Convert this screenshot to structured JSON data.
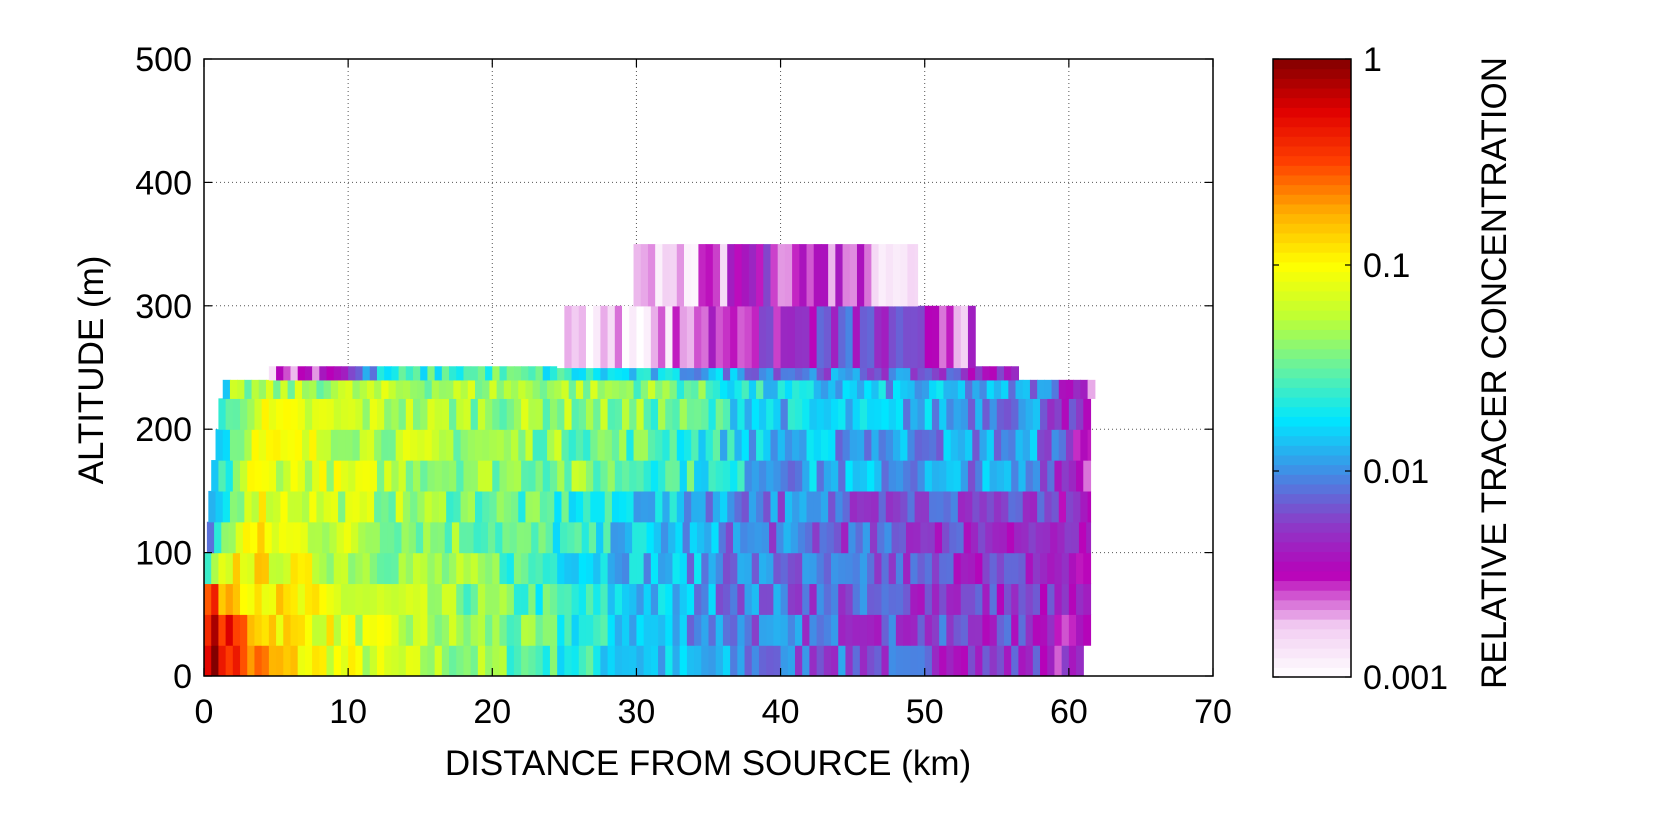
{
  "chart_data": {
    "type": "heatmap",
    "title": "",
    "xlabel": "DISTANCE FROM SOURCE (km)",
    "ylabel": "ALTITUDE (m)",
    "colorbar_label": "RELATIVE TRACER CONCENTRATION",
    "xlim": [
      0,
      70
    ],
    "ylim": [
      0,
      500
    ],
    "xticks": [
      0,
      10,
      20,
      30,
      40,
      50,
      60,
      70
    ],
    "yticks": [
      0,
      100,
      200,
      300,
      400,
      500
    ],
    "color_scale": "log",
    "color_range": [
      0.001,
      1
    ],
    "colorbar_ticks": [
      {
        "value": 0.001,
        "label": "0.001"
      },
      {
        "value": 0.01,
        "label": "0.01"
      },
      {
        "value": 0.1,
        "label": "0.1"
      },
      {
        "value": 1,
        "label": "1"
      }
    ],
    "colormap": [
      "#ffffff",
      "#f2ccf2",
      "#b800b8",
      "#8a3dc8",
      "#3f8fe6",
      "#00e6ff",
      "#66f2a0",
      "#bfff33",
      "#ffff00",
      "#ffb000",
      "#ff4000",
      "#e00000",
      "#820000"
    ],
    "grid": true,
    "layers": [
      {
        "z": [
          0,
          25
        ],
        "x_start": 0,
        "x_end": 61,
        "profile": [
          [
            0,
            1.0
          ],
          [
            3,
            0.25
          ],
          [
            6,
            0.12
          ],
          [
            12,
            0.06
          ],
          [
            20,
            0.04
          ],
          [
            30,
            0.015
          ],
          [
            40,
            0.008
          ],
          [
            50,
            0.006
          ],
          [
            58,
            0.005
          ],
          [
            61,
            0.003
          ]
        ]
      },
      {
        "z": [
          25,
          50
        ],
        "x_start": 0,
        "x_end": 61.5,
        "profile": [
          [
            0,
            0.7
          ],
          [
            3,
            0.22
          ],
          [
            6,
            0.11
          ],
          [
            12,
            0.06
          ],
          [
            20,
            0.04
          ],
          [
            30,
            0.015
          ],
          [
            40,
            0.008
          ],
          [
            50,
            0.006
          ],
          [
            58,
            0.005
          ],
          [
            61.5,
            0.003
          ]
        ]
      },
      {
        "z": [
          50,
          75
        ],
        "x_start": 0,
        "x_end": 61.5,
        "profile": [
          [
            0,
            0.3
          ],
          [
            3,
            0.16
          ],
          [
            6,
            0.09
          ],
          [
            12,
            0.055
          ],
          [
            20,
            0.035
          ],
          [
            30,
            0.015
          ],
          [
            40,
            0.008
          ],
          [
            50,
            0.006
          ],
          [
            58,
            0.005
          ],
          [
            61.5,
            0.003
          ]
        ]
      },
      {
        "z": [
          75,
          100
        ],
        "x_start": 0,
        "x_end": 61.5,
        "profile": [
          [
            0,
            0.015
          ],
          [
            2,
            0.12
          ],
          [
            6,
            0.08
          ],
          [
            12,
            0.05
          ],
          [
            20,
            0.035
          ],
          [
            30,
            0.015
          ],
          [
            40,
            0.008
          ],
          [
            50,
            0.006
          ],
          [
            58,
            0.005
          ],
          [
            61.5,
            0.003
          ]
        ]
      },
      {
        "z": [
          100,
          125
        ],
        "x_start": 0.2,
        "x_end": 61.5,
        "profile": [
          [
            0.2,
            0.008
          ],
          [
            2.5,
            0.1
          ],
          [
            6,
            0.08
          ],
          [
            12,
            0.05
          ],
          [
            20,
            0.035
          ],
          [
            30,
            0.015
          ],
          [
            40,
            0.008
          ],
          [
            50,
            0.006
          ],
          [
            58,
            0.005
          ],
          [
            61.5,
            0.003
          ]
        ]
      },
      {
        "z": [
          125,
          150
        ],
        "x_start": 0.3,
        "x_end": 61.5,
        "profile": [
          [
            0.3,
            0.006
          ],
          [
            3,
            0.09
          ],
          [
            6,
            0.08
          ],
          [
            12,
            0.05
          ],
          [
            20,
            0.035
          ],
          [
            30,
            0.016
          ],
          [
            40,
            0.009
          ],
          [
            50,
            0.007
          ],
          [
            58,
            0.005
          ],
          [
            61.5,
            0.003
          ]
        ]
      },
      {
        "z": [
          150,
          175
        ],
        "x_start": 0.5,
        "x_end": 61.5,
        "profile": [
          [
            0.5,
            0.01
          ],
          [
            3,
            0.08
          ],
          [
            8,
            0.07
          ],
          [
            15,
            0.05
          ],
          [
            25,
            0.04
          ],
          [
            32,
            0.03
          ],
          [
            40,
            0.012
          ],
          [
            50,
            0.011
          ],
          [
            58,
            0.01
          ],
          [
            61.5,
            0.003
          ]
        ]
      },
      {
        "z": [
          175,
          200
        ],
        "x_start": 0.8,
        "x_end": 61.5,
        "profile": [
          [
            0.8,
            0.012
          ],
          [
            3,
            0.08
          ],
          [
            8,
            0.07
          ],
          [
            15,
            0.05
          ],
          [
            25,
            0.04
          ],
          [
            32,
            0.03
          ],
          [
            40,
            0.012
          ],
          [
            50,
            0.011
          ],
          [
            58,
            0.01
          ],
          [
            61.5,
            0.003
          ]
        ]
      },
      {
        "z": [
          200,
          225
        ],
        "x_start": 1,
        "x_end": 61.5,
        "profile": [
          [
            1,
            0.015
          ],
          [
            3,
            0.07
          ],
          [
            8,
            0.065
          ],
          [
            15,
            0.05
          ],
          [
            25,
            0.045
          ],
          [
            32,
            0.035
          ],
          [
            40,
            0.015
          ],
          [
            50,
            0.012
          ],
          [
            58,
            0.01
          ],
          [
            61.5,
            0.003
          ]
        ]
      },
      {
        "z": [
          225,
          240
        ],
        "x_start": 1.3,
        "x_end": 61.8,
        "profile": [
          [
            1.3,
            0.004
          ],
          [
            2,
            0.04
          ],
          [
            8,
            0.05
          ],
          [
            15,
            0.05
          ],
          [
            25,
            0.05
          ],
          [
            32,
            0.04
          ],
          [
            40,
            0.015
          ],
          [
            50,
            0.012
          ],
          [
            58,
            0.01
          ],
          [
            61.8,
            0.003
          ]
        ]
      },
      {
        "z": [
          250,
          250
        ],
        "x_start": 4.5,
        "x_end": 56.5,
        "profile": [
          [
            4.5,
            0.002
          ],
          [
            7,
            0.003
          ],
          [
            10,
            0.005
          ],
          [
            13,
            0.02
          ],
          [
            20,
            0.03
          ],
          [
            30,
            0.015
          ],
          [
            40,
            0.01
          ],
          [
            50,
            0.007
          ],
          [
            54,
            0.005
          ],
          [
            56.5,
            0.003
          ]
        ]
      },
      {
        "z": [
          250,
          300
        ],
        "x_start": 24.5,
        "x_end": 53.5,
        "profile": [
          [
            24.5,
            0.0015
          ],
          [
            30,
            0.0015
          ],
          [
            33,
            0.002
          ],
          [
            35,
            0.003
          ],
          [
            40,
            0.004
          ],
          [
            45,
            0.006
          ],
          [
            50,
            0.004
          ],
          [
            53.5,
            0.0025
          ]
        ]
      },
      {
        "z": [
          300,
          350
        ],
        "x_start": 29.8,
        "x_end": 49.5,
        "profile": [
          [
            29.8,
            0.0013
          ],
          [
            33,
            0.0015
          ],
          [
            36,
            0.002
          ],
          [
            37.5,
            0.004
          ],
          [
            42,
            0.003
          ],
          [
            45,
            0.003
          ],
          [
            47,
            0.002
          ],
          [
            49.5,
            0.0012
          ]
        ]
      }
    ]
  }
}
